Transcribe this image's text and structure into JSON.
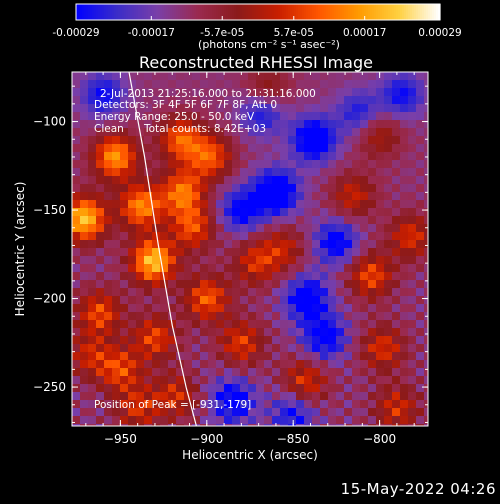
{
  "chart_data": {
    "type": "heatmap",
    "title": "Reconstructed RHESSI Image",
    "xlabel": "Heliocentric X (arcsec)",
    "ylabel": "Heliocentric Y (arcsec)",
    "xlim": [
      -978,
      -772
    ],
    "ylim": [
      -272,
      -72
    ],
    "x_ticks": [
      -950,
      -900,
      -850,
      -800
    ],
    "y_ticks": [
      -100,
      -150,
      -200,
      -250
    ],
    "x_tick_labels": [
      "−950",
      "−900",
      "−850",
      "−800"
    ],
    "y_tick_labels": [
      "−100",
      "−150",
      "−200",
      "−250"
    ],
    "colorbar": {
      "ticks": [
        -0.00029,
        -0.00017,
        -5.7e-05,
        5.7e-05,
        0.00017,
        0.00029
      ],
      "tick_labels": [
        "-0.00029",
        "-0.00017",
        "-5.7e-05",
        "5.7e-05",
        "0.00017",
        "0.00029"
      ],
      "label": "(photons cm⁻² s⁻¹ asec⁻²)",
      "colors": [
        "#0000ff",
        "#3a2cc8",
        "#7a3fa8",
        "#9a2a50",
        "#8b1a1a",
        "#c81e00",
        "#ff5500",
        "#ff9a00",
        "#ffd040",
        "#ffffff"
      ]
    },
    "annotations": {
      "time_range": "2-Jul-2013 21:25:16.000 to 21:31:16.000",
      "detectors": "Detectors: 3F 4F 5F 6F 7F 8F, Att 0",
      "energy": "Energy Range: 25.0 - 50.0 keV",
      "method": "Clean",
      "counts": "Total counts: 8.42E+03",
      "peak": "Position of Peak = [-931,-179]"
    },
    "peak": {
      "x": -931,
      "y": -179
    },
    "limb_curve": [
      [
        -945,
        -72
      ],
      [
        -936,
        -120
      ],
      [
        -928,
        -170
      ],
      [
        -920,
        -215
      ],
      [
        -912,
        -250
      ],
      [
        -906,
        -272
      ]
    ],
    "grid": false,
    "sources": [
      {
        "x": -971,
        "y": -155,
        "v": 0.00029
      },
      {
        "x": -931,
        "y": -179,
        "v": 0.00029
      },
      {
        "x": -953,
        "y": -120,
        "v": 0.00024
      },
      {
        "x": -938,
        "y": -148,
        "v": 0.00022
      },
      {
        "x": -914,
        "y": -140,
        "v": 0.0002
      },
      {
        "x": -915,
        "y": -110,
        "v": 0.00018
      },
      {
        "x": -908,
        "y": -160,
        "v": 0.00016
      },
      {
        "x": -898,
        "y": -120,
        "v": 0.00017
      },
      {
        "x": -900,
        "y": -200,
        "v": 0.00018
      },
      {
        "x": -962,
        "y": -208,
        "v": 0.00016
      },
      {
        "x": -930,
        "y": -222,
        "v": 0.00015
      },
      {
        "x": -950,
        "y": -240,
        "v": 0.00015
      },
      {
        "x": -940,
        "y": -262,
        "v": 0.00012
      },
      {
        "x": -918,
        "y": -255,
        "v": 0.00012
      },
      {
        "x": -880,
        "y": -225,
        "v": 0.00014
      },
      {
        "x": -872,
        "y": -180,
        "v": 0.00012
      },
      {
        "x": -856,
        "y": -172,
        "v": 0.0001
      },
      {
        "x": -843,
        "y": -247,
        "v": 0.00014
      },
      {
        "x": -805,
        "y": -187,
        "v": 0.00016
      },
      {
        "x": -798,
        "y": -228,
        "v": 0.00013
      },
      {
        "x": -782,
        "y": -165,
        "v": 0.00013
      },
      {
        "x": -815,
        "y": -142,
        "v": 0.00011
      },
      {
        "x": -800,
        "y": -108,
        "v": 9e-05
      },
      {
        "x": -865,
        "y": -82,
        "v": 8e-05
      },
      {
        "x": -790,
        "y": -262,
        "v": 0.00012
      },
      {
        "x": -968,
        "y": -232,
        "v": 0.0001
      },
      {
        "x": -860,
        "y": -140,
        "v": -0.00022
      },
      {
        "x": -838,
        "y": -110,
        "v": -0.0002
      },
      {
        "x": -842,
        "y": -200,
        "v": -0.00018
      },
      {
        "x": -885,
        "y": -258,
        "v": -0.00016
      },
      {
        "x": -832,
        "y": -222,
        "v": -0.00016
      },
      {
        "x": -880,
        "y": -150,
        "v": -0.00014
      },
      {
        "x": -960,
        "y": -85,
        "v": -0.00012
      },
      {
        "x": -787,
        "y": -85,
        "v": -0.00012
      },
      {
        "x": -868,
        "y": -95,
        "v": -0.00012
      },
      {
        "x": -825,
        "y": -168,
        "v": -0.00015
      },
      {
        "x": -812,
        "y": -95,
        "v": -0.0001
      },
      {
        "x": -850,
        "y": -265,
        "v": -0.00012
      }
    ]
  },
  "footer": {
    "date": "15-May-2022 04:26"
  }
}
